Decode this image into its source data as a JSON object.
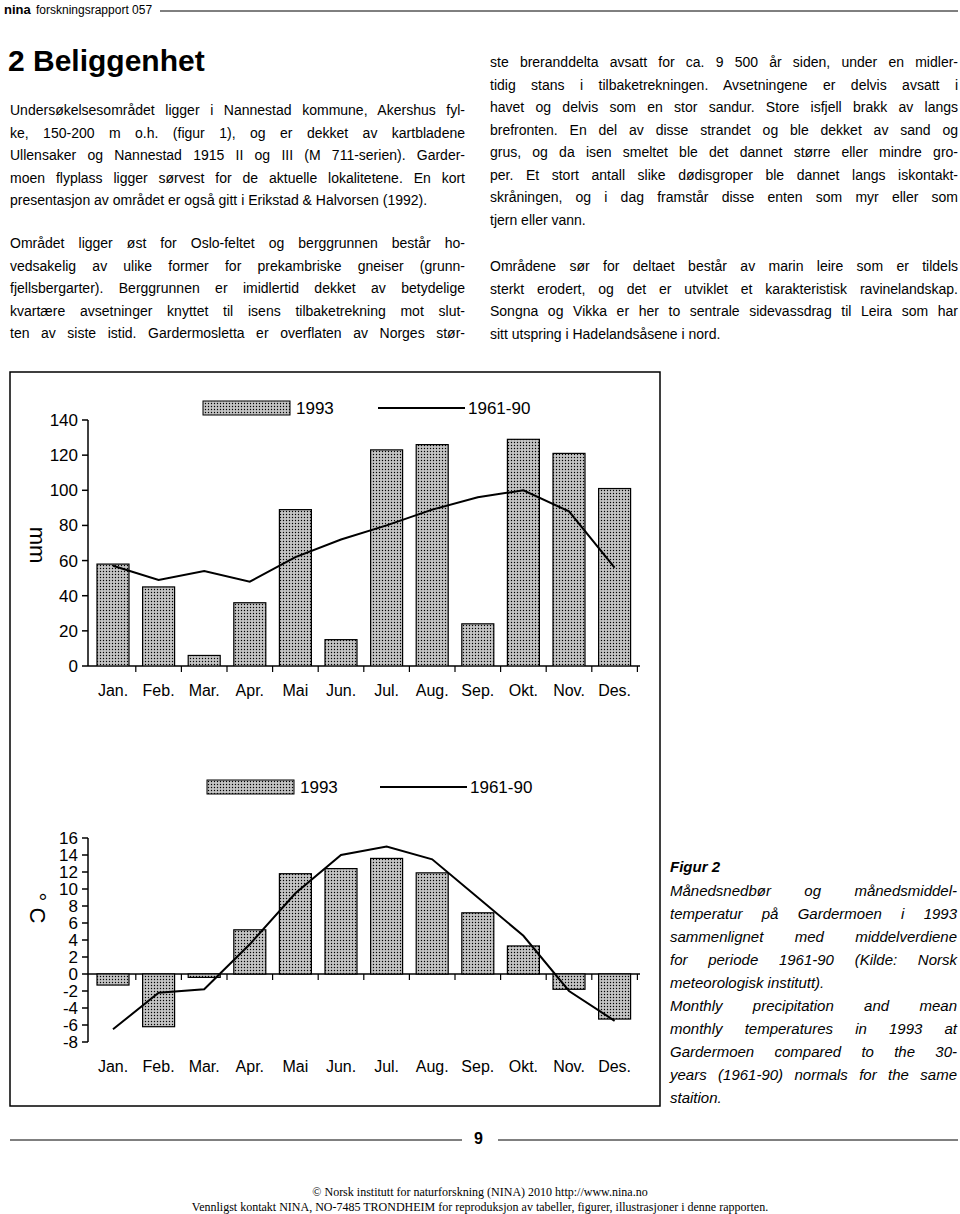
{
  "header": {
    "brand": "nina",
    "text": "forskningsrapport 057"
  },
  "title": "2 Beliggenhet",
  "columns": [
    [
      [
        "Undersøkelsesområdet ligger i Nannestad kommune, Akershus fyl-",
        "ke, 150-200 m o.h. (figur 1), og er dekket av kartbladene",
        "Ullensaker og Nannestad 1915 II og III (M 711-serien). Garder-",
        "moen flyplass ligger sørvest for de aktuelle lokalitetene. En kort",
        "presentasjon av området er også gitt i Erikstad & Halvorsen (1992)."
      ],
      [
        "Området ligger øst for Oslo-feltet og berggrunnen består ho-",
        "vedsakelig av ulike former for prekambriske gneiser (grunn-",
        "fjellsbergarter). Berggrunnen er imidlertid dekket av betydelige",
        "kvartære avsetninger knyttet til isens tilbaketrekning mot slut-",
        "ten av siste istid. Gardermosletta er overflaten av Norges stør-"
      ]
    ],
    [
      [
        "ste breranddelta avsatt for ca. 9 500 år siden, under en midler-",
        "tidig stans i tilbaketrekningen. Avsetningene er delvis avsatt i",
        "havet og delvis som en stor sandur. Store isfjell brakk av langs",
        "brefronten. En del av disse strandet og ble dekket av sand og",
        "grus, og da isen smeltet ble det dannet større eller mindre gro-",
        "per. Et stort antall slike dødisgroper ble dannet langs iskontakt-",
        "skråningen, og i dag framstår disse enten som myr eller som",
        "tjern eller vann."
      ],
      [
        "Områdene sør for deltaet består av marin leire som er tildels",
        "sterkt erodert, og det er utviklet et karakteristisk ravinelandskap.",
        "Songna og Vikka er her to sentrale sidevassdrag til Leira som har",
        "sitt utspring i Hadelandsåsene i nord."
      ]
    ]
  ],
  "chart_data": [
    {
      "type": "bar",
      "y_label": "mm",
      "categories": [
        "Jan.",
        "Feb.",
        "Mar.",
        "Apr.",
        "Mai",
        "Jun.",
        "Jul.",
        "Aug.",
        "Sep.",
        "Okt.",
        "Nov.",
        "Des."
      ],
      "series": [
        {
          "name": "1993",
          "type": "bar",
          "color": "#c4c4c4",
          "values": [
            58,
            45,
            6,
            36,
            89,
            15,
            123,
            126,
            24,
            129,
            121,
            101
          ]
        },
        {
          "name": "1961-90",
          "type": "line",
          "color": "#000000",
          "values": [
            57,
            49,
            54,
            48,
            62,
            72,
            80,
            89,
            96,
            100,
            88,
            56
          ]
        }
      ],
      "ylim": [
        0,
        140
      ],
      "yticks": [
        0,
        20,
        40,
        60,
        80,
        100,
        120,
        140
      ]
    },
    {
      "type": "bar",
      "y_label": "° C",
      "categories": [
        "Jan.",
        "Feb.",
        "Mar.",
        "Apr.",
        "Mai",
        "Jun.",
        "Jul.",
        "Aug.",
        "Sep.",
        "Okt.",
        "Nov.",
        "Des."
      ],
      "series": [
        {
          "name": "1993",
          "type": "bar",
          "color": "#c4c4c4",
          "values": [
            -1.3,
            -6.2,
            -0.4,
            5.2,
            11.8,
            12.4,
            13.6,
            11.9,
            7.2,
            3.3,
            -1.8,
            -5.3
          ]
        },
        {
          "name": "1961-90",
          "type": "line",
          "color": "#000000",
          "values": [
            -6.5,
            -2.2,
            -1.8,
            3.5,
            9.5,
            14.0,
            15.0,
            13.5,
            9.0,
            4.5,
            -2.0,
            -5.5
          ]
        }
      ],
      "ylim": [
        -8,
        16
      ],
      "yticks": [
        -8,
        -6,
        -4,
        -2,
        0,
        2,
        4,
        6,
        8,
        10,
        12,
        14,
        16
      ]
    }
  ],
  "caption": {
    "label": "Figur 2",
    "norwegian": [
      "Månedsnedbør og månedsmiddel-",
      "temperatur på Gardermoen i 1993",
      "sammenlignet med middelverdiene",
      "for periode 1961-90 (Kilde: Norsk",
      "meteorologisk institutt)."
    ],
    "english": [
      "Monthly precipitation and mean",
      "monthly temperatures in 1993 at",
      "Gardermoen compared to the 30-",
      "years (1961-90) normals for the same",
      "staition."
    ]
  },
  "page_number": "9",
  "footer": [
    "© Norsk institutt for naturforskning (NINA) 2010 http://www.nina.no",
    "Vennligst kontakt NINA, NO-7485 TRONDHEIM for reproduksjon av tabeller, figurer, illustrasjoner i denne rapporten."
  ]
}
